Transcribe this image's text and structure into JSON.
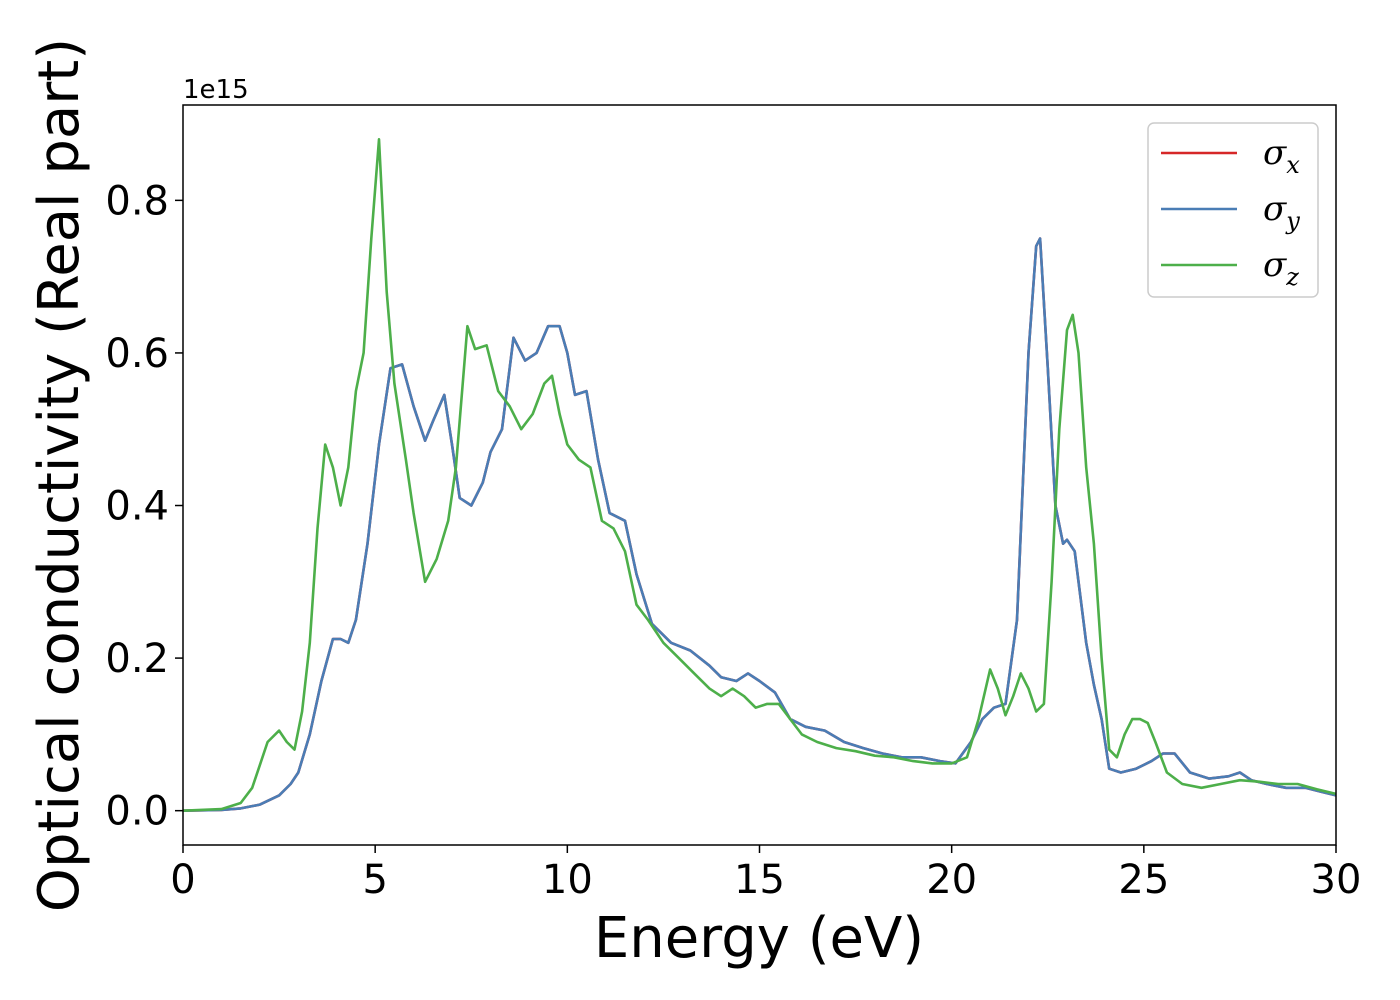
{
  "chart_data": {
    "type": "line",
    "title": "",
    "xlabel": "Energy (eV)",
    "ylabel": "Optical conductivity (Real part)",
    "y_offset_label": "1e15",
    "xlim": [
      0,
      30
    ],
    "ylim": [
      -0.045,
      0.925
    ],
    "xticks": [
      0,
      5,
      10,
      15,
      20,
      25,
      30
    ],
    "xtick_labels": [
      "0",
      "5",
      "10",
      "15",
      "20",
      "25",
      "30"
    ],
    "yticks": [
      0.0,
      0.2,
      0.4,
      0.6,
      0.8
    ],
    "ytick_labels": [
      "0.0",
      "0.2",
      "0.4",
      "0.6",
      "0.8"
    ],
    "grid": false,
    "legend_placement": "top-right",
    "legend": [
      {
        "symbol": "σ",
        "sub": "x"
      },
      {
        "symbol": "σ",
        "sub": "y"
      },
      {
        "symbol": "σ",
        "sub": "z"
      }
    ],
    "series": [
      {
        "color": "#d62728",
        "x": [
          0,
          1,
          1.5,
          2,
          2.5,
          2.8,
          3.0,
          3.3,
          3.6,
          3.9,
          4.1,
          4.3,
          4.5,
          4.8,
          5.1,
          5.4,
          5.7,
          6.0,
          6.3,
          6.5,
          6.8,
          7.0,
          7.2,
          7.5,
          7.8,
          8.0,
          8.3,
          8.6,
          8.9,
          9.2,
          9.5,
          9.8,
          10.0,
          10.2,
          10.5,
          10.8,
          11.1,
          11.5,
          11.8,
          12.2,
          12.7,
          13.2,
          13.7,
          14.0,
          14.4,
          14.7,
          15.0,
          15.4,
          15.8,
          16.2,
          16.7,
          17.2,
          17.7,
          18.2,
          18.7,
          19.2,
          19.7,
          20.1,
          20.5,
          20.8,
          21.1,
          21.4,
          21.7,
          22.0,
          22.2,
          22.3,
          22.5,
          22.7,
          22.9,
          23.0,
          23.2,
          23.5,
          23.7,
          23.9,
          24.1,
          24.4,
          24.8,
          25.2,
          25.5,
          25.8,
          26.2,
          26.7,
          27.2,
          27.5,
          27.8,
          28.2,
          28.7,
          29.2,
          29.6,
          30
        ],
        "y": [
          0,
          0.001,
          0.003,
          0.008,
          0.02,
          0.035,
          0.05,
          0.1,
          0.17,
          0.225,
          0.225,
          0.22,
          0.25,
          0.35,
          0.48,
          0.58,
          0.585,
          0.53,
          0.485,
          0.51,
          0.545,
          0.48,
          0.41,
          0.4,
          0.43,
          0.47,
          0.5,
          0.62,
          0.59,
          0.6,
          0.635,
          0.635,
          0.6,
          0.545,
          0.55,
          0.46,
          0.39,
          0.38,
          0.31,
          0.245,
          0.22,
          0.21,
          0.19,
          0.175,
          0.17,
          0.18,
          0.17,
          0.155,
          0.12,
          0.11,
          0.105,
          0.09,
          0.082,
          0.075,
          0.07,
          0.07,
          0.065,
          0.062,
          0.09,
          0.12,
          0.135,
          0.14,
          0.25,
          0.6,
          0.74,
          0.75,
          0.58,
          0.4,
          0.35,
          0.355,
          0.34,
          0.22,
          0.165,
          0.12,
          0.055,
          0.05,
          0.055,
          0.065,
          0.075,
          0.075,
          0.05,
          0.042,
          0.045,
          0.05,
          0.04,
          0.035,
          0.03,
          0.03,
          0.025,
          0.02
        ]
      },
      {
        "color": "#4a7db5",
        "x": [
          0,
          1,
          1.5,
          2,
          2.5,
          2.8,
          3.0,
          3.3,
          3.6,
          3.9,
          4.1,
          4.3,
          4.5,
          4.8,
          5.1,
          5.4,
          5.7,
          6.0,
          6.3,
          6.5,
          6.8,
          7.0,
          7.2,
          7.5,
          7.8,
          8.0,
          8.3,
          8.6,
          8.9,
          9.2,
          9.5,
          9.8,
          10.0,
          10.2,
          10.5,
          10.8,
          11.1,
          11.5,
          11.8,
          12.2,
          12.7,
          13.2,
          13.7,
          14.0,
          14.4,
          14.7,
          15.0,
          15.4,
          15.8,
          16.2,
          16.7,
          17.2,
          17.7,
          18.2,
          18.7,
          19.2,
          19.7,
          20.1,
          20.5,
          20.8,
          21.1,
          21.4,
          21.7,
          22.0,
          22.2,
          22.3,
          22.5,
          22.7,
          22.9,
          23.0,
          23.2,
          23.5,
          23.7,
          23.9,
          24.1,
          24.4,
          24.8,
          25.2,
          25.5,
          25.8,
          26.2,
          26.7,
          27.2,
          27.5,
          27.8,
          28.2,
          28.7,
          29.2,
          29.6,
          30
        ],
        "y": [
          0,
          0.001,
          0.003,
          0.008,
          0.02,
          0.035,
          0.05,
          0.1,
          0.17,
          0.225,
          0.225,
          0.22,
          0.25,
          0.35,
          0.48,
          0.58,
          0.585,
          0.53,
          0.485,
          0.51,
          0.545,
          0.48,
          0.41,
          0.4,
          0.43,
          0.47,
          0.5,
          0.62,
          0.59,
          0.6,
          0.635,
          0.635,
          0.6,
          0.545,
          0.55,
          0.46,
          0.39,
          0.38,
          0.31,
          0.245,
          0.22,
          0.21,
          0.19,
          0.175,
          0.17,
          0.18,
          0.17,
          0.155,
          0.12,
          0.11,
          0.105,
          0.09,
          0.082,
          0.075,
          0.07,
          0.07,
          0.065,
          0.062,
          0.09,
          0.12,
          0.135,
          0.14,
          0.25,
          0.6,
          0.74,
          0.75,
          0.58,
          0.4,
          0.35,
          0.355,
          0.34,
          0.22,
          0.165,
          0.12,
          0.055,
          0.05,
          0.055,
          0.065,
          0.075,
          0.075,
          0.05,
          0.042,
          0.045,
          0.05,
          0.04,
          0.035,
          0.03,
          0.03,
          0.025,
          0.02
        ]
      },
      {
        "color": "#4daf4a",
        "x": [
          0,
          1,
          1.5,
          1.8,
          2.0,
          2.2,
          2.5,
          2.7,
          2.9,
          3.1,
          3.3,
          3.5,
          3.7,
          3.9,
          4.1,
          4.3,
          4.5,
          4.7,
          4.9,
          5.1,
          5.3,
          5.5,
          5.8,
          6.0,
          6.3,
          6.6,
          6.9,
          7.1,
          7.4,
          7.6,
          7.9,
          8.2,
          8.5,
          8.8,
          9.1,
          9.4,
          9.6,
          9.8,
          10.0,
          10.3,
          10.6,
          10.9,
          11.2,
          11.5,
          11.8,
          12.1,
          12.5,
          12.9,
          13.3,
          13.7,
          14.0,
          14.3,
          14.6,
          14.9,
          15.2,
          15.5,
          15.8,
          16.1,
          16.5,
          17.0,
          17.5,
          18.0,
          18.5,
          19.0,
          19.5,
          20.0,
          20.4,
          20.7,
          21.0,
          21.2,
          21.4,
          21.6,
          21.8,
          22.0,
          22.2,
          22.4,
          22.6,
          22.8,
          23.0,
          23.15,
          23.3,
          23.5,
          23.7,
          23.9,
          24.1,
          24.3,
          24.5,
          24.7,
          24.9,
          25.1,
          25.3,
          25.6,
          26.0,
          26.5,
          27.0,
          27.5,
          28.0,
          28.5,
          29.0,
          29.5,
          30
        ],
        "y": [
          0,
          0.002,
          0.01,
          0.03,
          0.06,
          0.09,
          0.105,
          0.09,
          0.08,
          0.13,
          0.22,
          0.37,
          0.48,
          0.45,
          0.4,
          0.45,
          0.55,
          0.6,
          0.75,
          0.88,
          0.68,
          0.56,
          0.46,
          0.39,
          0.3,
          0.33,
          0.38,
          0.45,
          0.635,
          0.605,
          0.61,
          0.55,
          0.53,
          0.5,
          0.52,
          0.56,
          0.57,
          0.52,
          0.48,
          0.46,
          0.45,
          0.38,
          0.37,
          0.34,
          0.27,
          0.25,
          0.22,
          0.2,
          0.18,
          0.16,
          0.15,
          0.16,
          0.15,
          0.135,
          0.14,
          0.14,
          0.12,
          0.1,
          0.09,
          0.082,
          0.078,
          0.072,
          0.07,
          0.065,
          0.062,
          0.062,
          0.07,
          0.12,
          0.185,
          0.16,
          0.125,
          0.15,
          0.18,
          0.16,
          0.13,
          0.14,
          0.3,
          0.5,
          0.63,
          0.65,
          0.6,
          0.45,
          0.35,
          0.2,
          0.08,
          0.07,
          0.1,
          0.12,
          0.12,
          0.115,
          0.09,
          0.05,
          0.035,
          0.03,
          0.035,
          0.04,
          0.038,
          0.035,
          0.035,
          0.028,
          0.022
        ]
      }
    ]
  }
}
